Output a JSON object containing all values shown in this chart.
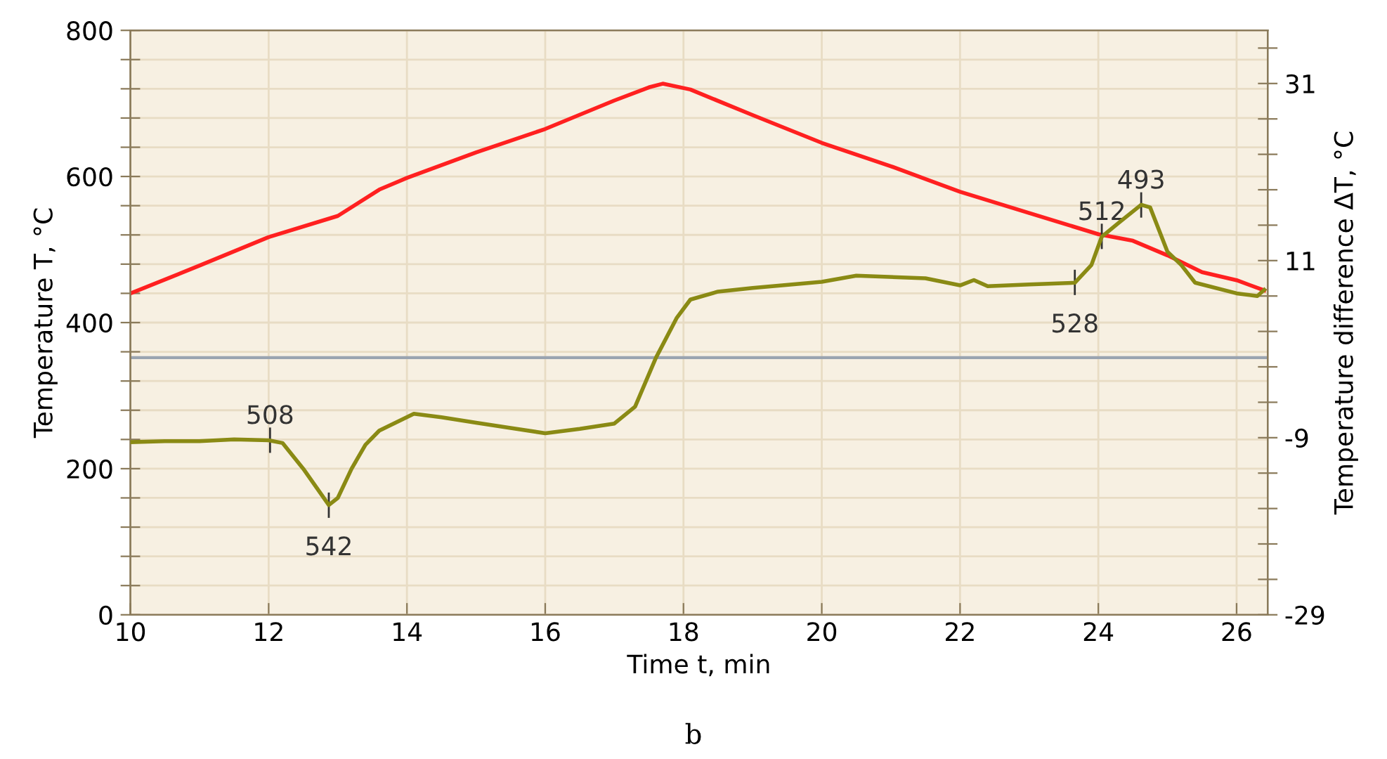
{
  "chart_data": {
    "type": "line",
    "xlabel": "Time t, min",
    "ylabel": "Temperature T, °C",
    "y2label": "Temperature difference ΔT, °C",
    "xlim": [
      10,
      26.45
    ],
    "xticks": [
      10,
      12,
      14,
      16,
      18,
      20,
      22,
      24,
      26
    ],
    "ylim": [
      0,
      800
    ],
    "yticks": [
      0,
      {
        "value": 40,
        "label": null
      },
      {
        "value": 80,
        "label": null
      },
      {
        "value": 120,
        "label": null
      },
      {
        "value": 160,
        "label": null
      },
      200,
      {
        "value": 240,
        "label": null
      },
      {
        "value": 280,
        "label": null
      },
      {
        "value": 320,
        "label": null
      },
      {
        "value": 360,
        "label": null
      },
      400,
      {
        "value": 440,
        "label": null
      },
      {
        "value": 480,
        "label": null
      },
      {
        "value": 520,
        "label": null
      },
      {
        "value": 560,
        "label": null
      },
      600,
      {
        "value": 640,
        "label": null
      },
      {
        "value": 680,
        "label": null
      },
      {
        "value": 720,
        "label": null
      },
      {
        "value": 760,
        "label": null
      },
      800
    ],
    "y2lim": [
      -29,
      37
    ],
    "y2ticks": [
      -29,
      {
        "value": -25,
        "label": null
      },
      {
        "value": -21,
        "label": null
      },
      {
        "value": -17,
        "label": null
      },
      {
        "value": -13,
        "label": null
      },
      -9,
      {
        "value": -5,
        "label": null
      },
      {
        "value": -1,
        "label": null
      },
      {
        "value": 3,
        "label": null
      },
      {
        "value": 7,
        "label": null
      },
      11,
      {
        "value": 15,
        "label": null
      },
      {
        "value": 19,
        "label": null
      },
      {
        "value": 23,
        "label": null
      },
      {
        "value": 27,
        "label": null
      },
      31,
      {
        "value": 35,
        "label": null
      }
    ],
    "grid": true,
    "line_style": "solid",
    "marker": "none",
    "series": [
      {
        "color": "#ff2020",
        "x": [
          10,
          11,
          12,
          13,
          13.6,
          14,
          15,
          16,
          17,
          17.5,
          17.7,
          18.1,
          19,
          20,
          21,
          22,
          23,
          24,
          24.5,
          25,
          25.5,
          26,
          26.4
        ],
        "values": [
          440,
          478,
          517,
          546,
          582,
          598,
          633,
          665,
          704,
          722,
          727,
          719,
          684,
          646,
          614,
          579,
          550,
          521,
          512,
          492,
          469,
          458,
          444
        ]
      },
      {
        "axis": "y2",
        "color": "#8a8a14",
        "x": [
          10,
          10.5,
          11,
          11.5,
          12,
          12.2,
          12.5,
          12.87,
          13.0,
          13.2,
          13.4,
          13.6,
          14.1,
          14.5,
          15,
          15.5,
          16,
          16.5,
          17,
          17.3,
          17.6,
          17.9,
          18.1,
          18.5,
          19,
          20,
          20.5,
          21.5,
          22,
          22.2,
          22.4,
          23,
          23.66,
          23.9,
          24.05,
          24.3,
          24.62,
          24.75,
          25.0,
          25.2,
          25.4,
          26,
          26.3,
          26.4
        ],
        "values": [
          -9.5,
          -9.4,
          -9.4,
          -9.2,
          -9.3,
          -9.6,
          -12.5,
          -16.6,
          -15.8,
          -12.5,
          -9.8,
          -8.2,
          -6.3,
          -6.7,
          -7.3,
          -7.9,
          -8.5,
          -8.0,
          -7.4,
          -5.5,
          0.0,
          4.5,
          6.6,
          7.5,
          7.9,
          8.6,
          9.3,
          9.0,
          8.2,
          8.8,
          8.1,
          8.3,
          8.5,
          10.5,
          13.7,
          15.3,
          17.3,
          17.0,
          12.0,
          10.5,
          8.5,
          7.3,
          7.0,
          7.7
        ]
      }
    ],
    "ref_lines": [
      {
        "axis": "y",
        "value": 352,
        "color": "#9aa4b0"
      }
    ],
    "annotations": [
      {
        "text": "508",
        "x": 12.02,
        "y": 239
      },
      {
        "text": "542",
        "x": 12.87,
        "y": 150
      },
      {
        "text": "528",
        "x": 23.66,
        "y": 455
      },
      {
        "text": "512",
        "x": 24.05,
        "y": 518
      },
      {
        "text": "493",
        "x": 24.62,
        "y": 561
      },
      "b"
    ]
  }
}
